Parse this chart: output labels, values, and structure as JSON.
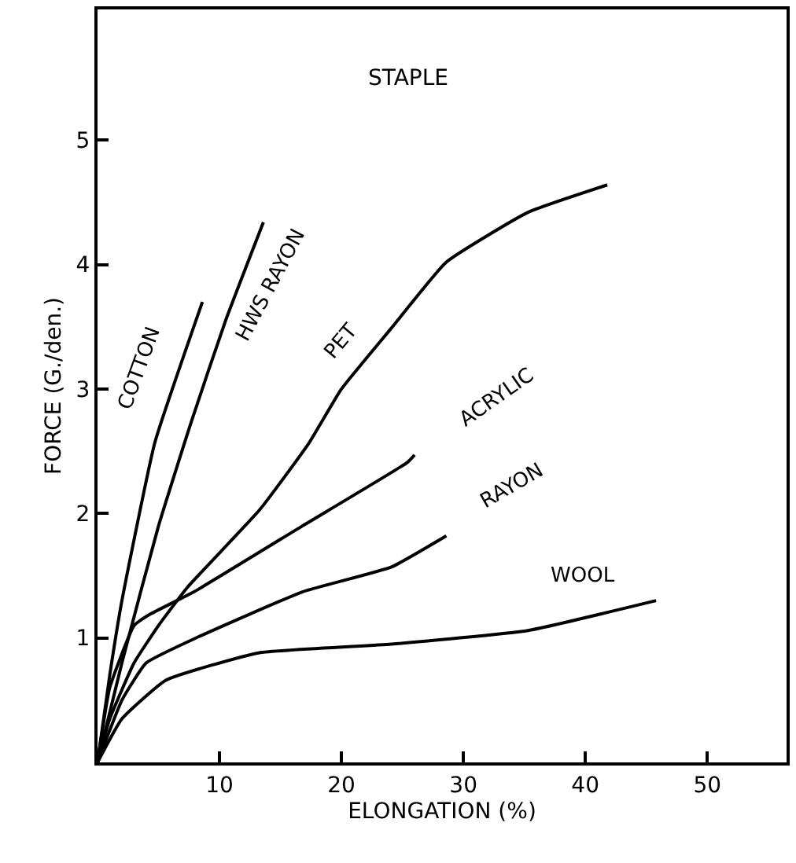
{
  "chart_data": {
    "type": "line",
    "title": "STAPLE",
    "xlabel": "ELONGATION (%)",
    "ylabel": "FORCE (G./den.)",
    "xlim": [
      0,
      56.5
    ],
    "ylim": [
      0,
      6.05
    ],
    "xticks": [
      10,
      20,
      30,
      40,
      50
    ],
    "yticks": [
      1,
      2,
      3,
      4,
      5
    ],
    "legend": false,
    "marker": "none",
    "line_style": "solid",
    "series": [
      {
        "name": "COTTON",
        "color": "#000000",
        "x": [
          0,
          1,
          2,
          4.7,
          8.6
        ],
        "values": [
          0,
          0.7,
          1.3,
          2.57,
          3.7
        ]
      },
      {
        "name": "HWS RAYON",
        "color": "#000000",
        "x": [
          0,
          2,
          5,
          7.7,
          10.5,
          13.6
        ],
        "values": [
          0,
          0.8,
          1.9,
          2.74,
          3.55,
          4.34
        ]
      },
      {
        "name": "PET",
        "color": "#000000",
        "x": [
          0,
          1,
          3,
          5,
          7.4,
          13.3,
          17.3,
          20,
          24.1,
          28.6,
          35.3,
          41.8
        ],
        "values": [
          0,
          0.35,
          0.8,
          1.1,
          1.41,
          2.03,
          2.56,
          3.0,
          3.49,
          4.02,
          4.42,
          4.64
        ]
      },
      {
        "name": "ACRYLIC",
        "color": "#000000",
        "x": [
          0,
          1,
          3,
          4.3,
          7.9,
          16.8,
          25.4,
          26
        ],
        "values": [
          0,
          0.6,
          1.1,
          1.19,
          1.37,
          1.9,
          2.41,
          2.47
        ]
      },
      {
        "name": "RAYON",
        "color": "#000000",
        "x": [
          0,
          2,
          4,
          8.3,
          16.8,
          24.1,
          28.6
        ],
        "values": [
          0,
          0.5,
          0.8,
          1.01,
          1.37,
          1.57,
          1.82
        ]
      },
      {
        "name": "WOOL",
        "color": "#000000",
        "x": [
          0,
          2,
          5.6,
          13.2,
          24.1,
          35.3,
          45.8
        ],
        "values": [
          0,
          0.35,
          0.66,
          0.88,
          0.95,
          1.06,
          1.3
        ]
      }
    ]
  }
}
